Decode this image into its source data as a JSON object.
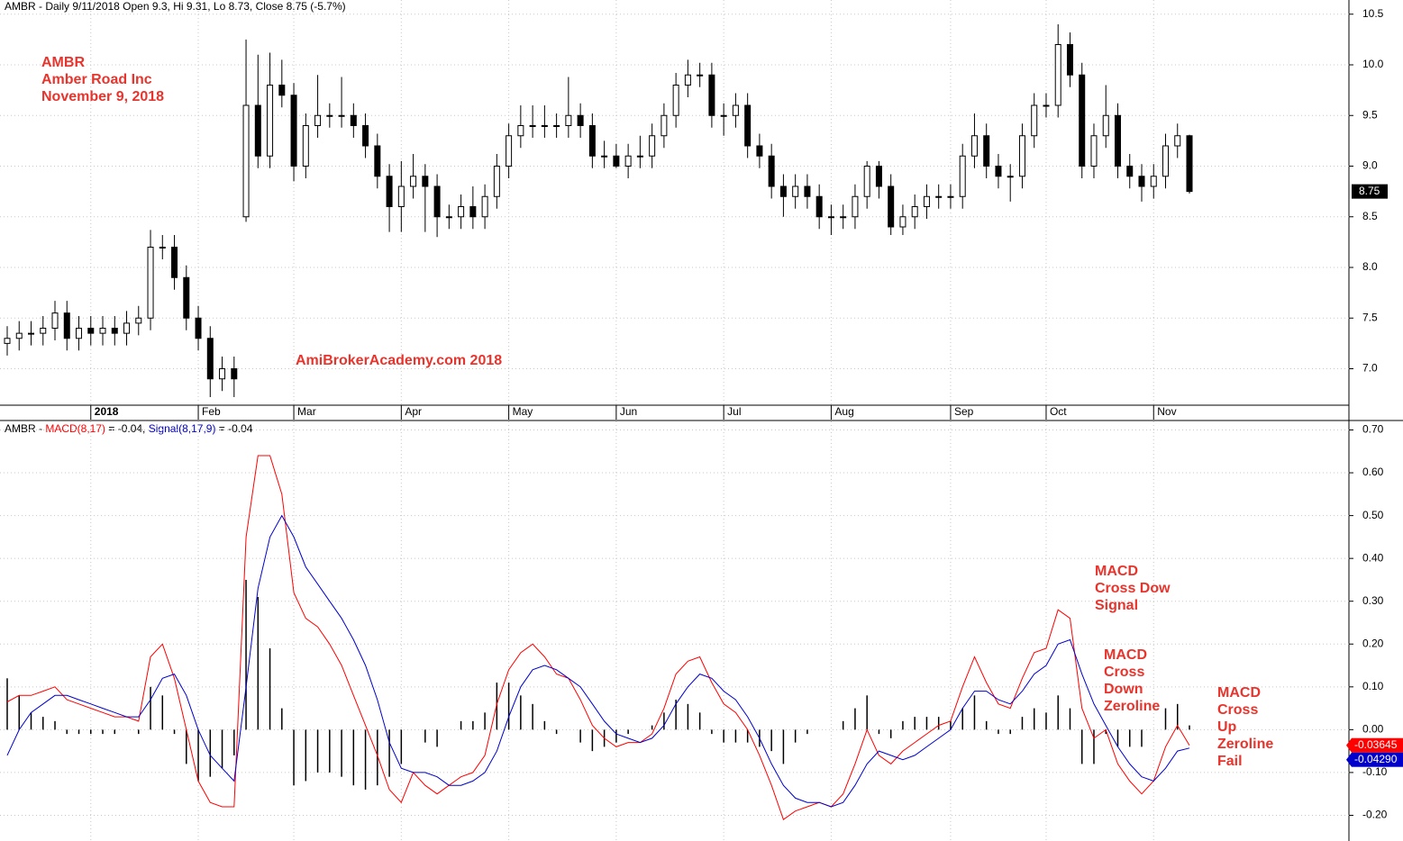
{
  "chart_data": [
    {
      "type": "candlestick",
      "title": "AMBR - Daily 9/11/2018 Open 9.3, Hi 9.31, Lo 8.73, Close 8.75 (-5.7%)",
      "categories": [
        null,
        null,
        null,
        null,
        null,
        null,
        null,
        "2018",
        null,
        null,
        null,
        null,
        null,
        null,
        null,
        null,
        "Feb",
        null,
        null,
        null,
        null,
        null,
        null,
        null,
        "Mar",
        null,
        null,
        null,
        null,
        null,
        null,
        null,
        null,
        "Apr",
        null,
        null,
        null,
        null,
        null,
        null,
        null,
        null,
        "May",
        null,
        null,
        null,
        null,
        null,
        null,
        null,
        null,
        "Jun",
        null,
        null,
        null,
        null,
        null,
        null,
        null,
        null,
        "Jul",
        null,
        null,
        null,
        null,
        null,
        null,
        null,
        null,
        "Aug",
        null,
        null,
        null,
        null,
        null,
        null,
        null,
        null,
        null,
        "Sep",
        null,
        null,
        null,
        null,
        null,
        null,
        null,
        "Oct",
        null,
        null,
        null,
        null,
        null,
        null,
        null,
        null,
        "Nov",
        null,
        null,
        null
      ],
      "open": [
        7.25,
        7.3,
        7.35,
        7.35,
        7.4,
        7.55,
        7.3,
        7.4,
        7.35,
        7.4,
        7.35,
        7.45,
        7.5,
        8.2,
        8.2,
        7.9,
        7.5,
        7.3,
        6.9,
        7.0,
        8.5,
        9.6,
        9.1,
        9.8,
        9.7,
        9.0,
        9.4,
        9.5,
        9.5,
        9.5,
        9.4,
        9.2,
        8.9,
        8.6,
        8.8,
        8.9,
        8.8,
        8.5,
        8.5,
        8.6,
        8.5,
        8.7,
        9.0,
        9.3,
        9.4,
        9.4,
        9.4,
        9.4,
        9.5,
        9.4,
        9.1,
        9.1,
        9.0,
        9.1,
        9.1,
        9.3,
        9.5,
        9.8,
        9.9,
        9.9,
        9.5,
        9.5,
        9.6,
        9.2,
        9.1,
        8.8,
        8.7,
        8.8,
        8.7,
        8.5,
        8.5,
        8.5,
        8.7,
        9.0,
        8.8,
        8.4,
        8.5,
        8.6,
        8.7,
        8.7,
        8.7,
        9.1,
        9.3,
        9.0,
        8.9,
        8.9,
        9.3,
        9.6,
        9.6,
        10.2,
        9.9,
        9.0,
        9.3,
        9.5,
        9.0,
        8.9,
        8.8,
        8.9,
        9.2,
        9.3
      ],
      "high": [
        7.42,
        7.47,
        7.47,
        7.52,
        7.67,
        7.67,
        7.52,
        7.52,
        7.52,
        7.52,
        7.57,
        7.62,
        8.37,
        8.32,
        8.32,
        8.02,
        7.62,
        7.42,
        7.12,
        7.12,
        10.25,
        10.1,
        10.12,
        10.05,
        9.82,
        9.52,
        9.9,
        9.62,
        9.88,
        9.62,
        9.52,
        9.32,
        9.02,
        9.05,
        9.12,
        9.02,
        8.92,
        8.62,
        8.72,
        8.8,
        8.82,
        9.12,
        9.42,
        9.6,
        9.6,
        9.6,
        9.52,
        9.88,
        9.62,
        9.52,
        9.25,
        9.22,
        9.22,
        9.3,
        9.42,
        9.62,
        9.92,
        10.05,
        10.02,
        10.02,
        9.62,
        9.72,
        9.72,
        9.32,
        9.22,
        8.92,
        8.92,
        8.92,
        8.82,
        8.62,
        8.62,
        8.82,
        9.05,
        9.05,
        8.92,
        8.62,
        8.72,
        8.82,
        8.82,
        8.82,
        9.22,
        9.52,
        9.42,
        9.12,
        9.02,
        9.42,
        9.72,
        9.72,
        10.4,
        10.32,
        10.02,
        9.42,
        9.8,
        9.62,
        9.12,
        9.02,
        9.02,
        9.32,
        9.42,
        9.31
      ],
      "low": [
        7.13,
        7.18,
        7.23,
        7.23,
        7.28,
        7.18,
        7.18,
        7.23,
        7.23,
        7.23,
        7.23,
        7.33,
        7.38,
        8.08,
        7.78,
        7.38,
        7.18,
        6.72,
        6.78,
        6.72,
        8.45,
        8.98,
        8.98,
        9.58,
        8.85,
        8.88,
        9.28,
        9.38,
        9.38,
        9.28,
        9.08,
        8.78,
        8.35,
        8.35,
        8.68,
        8.35,
        8.3,
        8.38,
        8.38,
        8.38,
        8.38,
        8.58,
        8.88,
        9.18,
        9.28,
        9.28,
        9.28,
        9.28,
        9.28,
        8.98,
        8.98,
        8.98,
        8.88,
        8.98,
        8.98,
        9.18,
        9.38,
        9.68,
        9.78,
        9.38,
        9.3,
        9.38,
        9.08,
        8.98,
        8.68,
        8.5,
        8.58,
        8.58,
        8.38,
        8.32,
        8.38,
        8.38,
        8.58,
        8.68,
        8.32,
        8.32,
        8.38,
        8.48,
        8.58,
        8.58,
        8.58,
        8.98,
        8.88,
        8.78,
        8.65,
        8.78,
        9.18,
        9.48,
        9.48,
        9.78,
        8.88,
        8.88,
        9.18,
        8.88,
        8.78,
        8.65,
        8.68,
        8.78,
        9.08,
        8.73
      ],
      "close": [
        7.3,
        7.35,
        7.35,
        7.4,
        7.55,
        7.3,
        7.4,
        7.35,
        7.4,
        7.35,
        7.45,
        7.5,
        8.2,
        8.2,
        7.9,
        7.5,
        7.3,
        6.9,
        7.0,
        6.9,
        9.6,
        9.1,
        9.8,
        9.7,
        9.0,
        9.4,
        9.5,
        9.5,
        9.5,
        9.4,
        9.2,
        8.9,
        8.6,
        8.8,
        8.9,
        8.8,
        8.5,
        8.5,
        8.6,
        8.5,
        8.7,
        9.0,
        9.3,
        9.4,
        9.4,
        9.4,
        9.4,
        9.5,
        9.4,
        9.1,
        9.1,
        9.0,
        9.1,
        9.1,
        9.3,
        9.5,
        9.8,
        9.9,
        9.9,
        9.5,
        9.5,
        9.6,
        9.2,
        9.1,
        8.8,
        8.7,
        8.8,
        8.7,
        8.5,
        8.5,
        8.5,
        8.7,
        9.0,
        8.8,
        8.4,
        8.5,
        8.6,
        8.7,
        8.7,
        8.7,
        9.1,
        9.3,
        9.0,
        8.9,
        8.9,
        9.3,
        9.6,
        9.6,
        10.2,
        9.9,
        9.0,
        9.3,
        9.5,
        9.0,
        8.9,
        8.8,
        8.9,
        9.2,
        9.3,
        8.75
      ],
      "last_label": "8.75",
      "ylim": [
        6.64,
        10.64
      ],
      "yticks": [
        {
          "value": 7.0,
          "label": "7.0"
        },
        7.5,
        {
          "value": 8.0,
          "label": "8.0"
        },
        8.5,
        {
          "value": 9.0,
          "label": "9.0"
        },
        9.5,
        {
          "value": 10.0,
          "label": "10.0"
        },
        10.5
      ],
      "grid": true,
      "annotations": [
        {
          "lines": [
            "AMBR",
            "Amber Road Inc",
            "November 9, 2018"
          ]
        },
        {
          "lines": [
            "AmiBrokerAcademy.com 2018"
          ]
        }
      ]
    },
    {
      "type": "macd",
      "legend_prefix": "AMBR - ",
      "series": [
        {
          "name": "MACD(8,17)",
          "legend_value": " = -0.04, ",
          "color": "#ff0000",
          "last_label": "-0.03645",
          "values": [
            0.065,
            0.08,
            0.08,
            0.09,
            0.1,
            0.07,
            0.06,
            0.05,
            0.04,
            0.03,
            0.03,
            0.02,
            0.17,
            0.2,
            0.12,
            0.0,
            -0.12,
            -0.17,
            -0.18,
            -0.18,
            0.45,
            0.64,
            0.64,
            0.55,
            0.32,
            0.26,
            0.24,
            0.2,
            0.15,
            0.08,
            0.01,
            -0.06,
            -0.14,
            -0.17,
            -0.1,
            -0.13,
            -0.15,
            -0.13,
            -0.11,
            -0.1,
            -0.06,
            0.06,
            0.14,
            0.18,
            0.2,
            0.17,
            0.13,
            0.12,
            0.07,
            0.01,
            -0.02,
            -0.04,
            -0.03,
            -0.03,
            -0.01,
            0.05,
            0.13,
            0.16,
            0.17,
            0.11,
            0.06,
            0.04,
            0.0,
            -0.06,
            -0.13,
            -0.21,
            -0.19,
            -0.18,
            -0.17,
            -0.18,
            -0.15,
            -0.08,
            0.0,
            -0.06,
            -0.08,
            -0.05,
            -0.03,
            -0.01,
            0.01,
            0.02,
            0.1,
            0.17,
            0.11,
            0.06,
            0.05,
            0.12,
            0.18,
            0.19,
            0.28,
            0.26,
            0.05,
            -0.02,
            0.0,
            -0.08,
            -0.12,
            -0.15,
            -0.12,
            -0.04,
            0.01,
            -0.03645
          ]
        },
        {
          "name": "Signal(8,17,9)",
          "legend_value": " = -0.04",
          "color": "#0000cc",
          "last_label": "-0.04290",
          "values": [
            -0.06,
            0.0,
            0.04,
            0.06,
            0.08,
            0.08,
            0.07,
            0.06,
            0.05,
            0.04,
            0.03,
            0.03,
            0.07,
            0.12,
            0.13,
            0.08,
            0.0,
            -0.06,
            -0.09,
            -0.12,
            0.1,
            0.33,
            0.45,
            0.5,
            0.45,
            0.38,
            0.34,
            0.3,
            0.26,
            0.21,
            0.15,
            0.07,
            -0.03,
            -0.09,
            -0.1,
            -0.1,
            -0.11,
            -0.13,
            -0.13,
            -0.12,
            -0.1,
            -0.05,
            0.03,
            0.1,
            0.14,
            0.15,
            0.14,
            0.12,
            0.1,
            0.06,
            0.02,
            -0.01,
            -0.02,
            -0.03,
            -0.02,
            0.01,
            0.06,
            0.1,
            0.13,
            0.12,
            0.09,
            0.07,
            0.03,
            -0.02,
            -0.08,
            -0.13,
            -0.16,
            -0.17,
            -0.17,
            -0.18,
            -0.17,
            -0.13,
            -0.08,
            -0.05,
            -0.06,
            -0.07,
            -0.06,
            -0.04,
            -0.02,
            0.0,
            0.05,
            0.09,
            0.09,
            0.07,
            0.06,
            0.09,
            0.13,
            0.15,
            0.2,
            0.21,
            0.13,
            0.06,
            0.01,
            -0.04,
            -0.08,
            -0.11,
            -0.12,
            -0.09,
            -0.05,
            -0.0429
          ]
        }
      ],
      "histogram": {
        "color": "#000000",
        "values": [
          0.12,
          0.08,
          0.04,
          0.03,
          0.02,
          -0.01,
          -0.01,
          -0.01,
          -0.01,
          -0.01,
          0.0,
          -0.01,
          0.1,
          0.08,
          -0.01,
          -0.08,
          -0.12,
          -0.11,
          -0.09,
          -0.06,
          0.35,
          0.31,
          0.19,
          0.05,
          -0.13,
          -0.12,
          -0.1,
          -0.1,
          -0.11,
          -0.13,
          -0.14,
          -0.13,
          -0.11,
          -0.08,
          0.0,
          -0.03,
          -0.04,
          0.0,
          0.02,
          0.02,
          0.04,
          0.11,
          0.11,
          0.08,
          0.06,
          0.02,
          -0.01,
          0.0,
          -0.03,
          -0.05,
          -0.04,
          -0.03,
          -0.01,
          0.0,
          0.01,
          0.04,
          0.07,
          0.06,
          0.04,
          -0.01,
          -0.03,
          -0.03,
          -0.03,
          -0.04,
          -0.05,
          -0.08,
          -0.03,
          -0.01,
          0.0,
          0.0,
          0.02,
          0.05,
          0.08,
          -0.01,
          -0.02,
          0.02,
          0.03,
          0.03,
          0.03,
          0.02,
          0.05,
          0.08,
          0.02,
          -0.01,
          -0.01,
          0.03,
          0.05,
          0.04,
          0.08,
          0.05,
          -0.08,
          -0.08,
          -0.01,
          -0.04,
          -0.04,
          -0.04,
          0.0,
          0.05,
          0.06,
          0.01
        ]
      },
      "ylim": [
        -0.26,
        0.72
      ],
      "yticks": [
        {
          "value": -0.2,
          "label": "-0.20"
        },
        {
          "value": -0.1,
          "label": "-0.10"
        },
        {
          "value": 0.0,
          "label": "0.00"
        },
        {
          "value": 0.1,
          "label": "0.10"
        },
        {
          "value": 0.2,
          "label": "0.20"
        },
        {
          "value": 0.3,
          "label": "0.30"
        },
        {
          "value": 0.4,
          "label": "0.40"
        },
        {
          "value": 0.5,
          "label": "0.50"
        },
        {
          "value": 0.6,
          "label": "0.60"
        },
        {
          "value": 0.7,
          "label": "0.70"
        }
      ],
      "grid": true,
      "annotations": [
        {
          "lines": [
            "MACD",
            "Cross Dow",
            "Signal"
          ]
        },
        {
          "lines": [
            "MACD",
            "Cross",
            "Down",
            "Zeroline"
          ]
        },
        {
          "lines": [
            "MACD",
            "Cross",
            "Up",
            "Zeroline",
            "Fail"
          ]
        }
      ]
    }
  ]
}
